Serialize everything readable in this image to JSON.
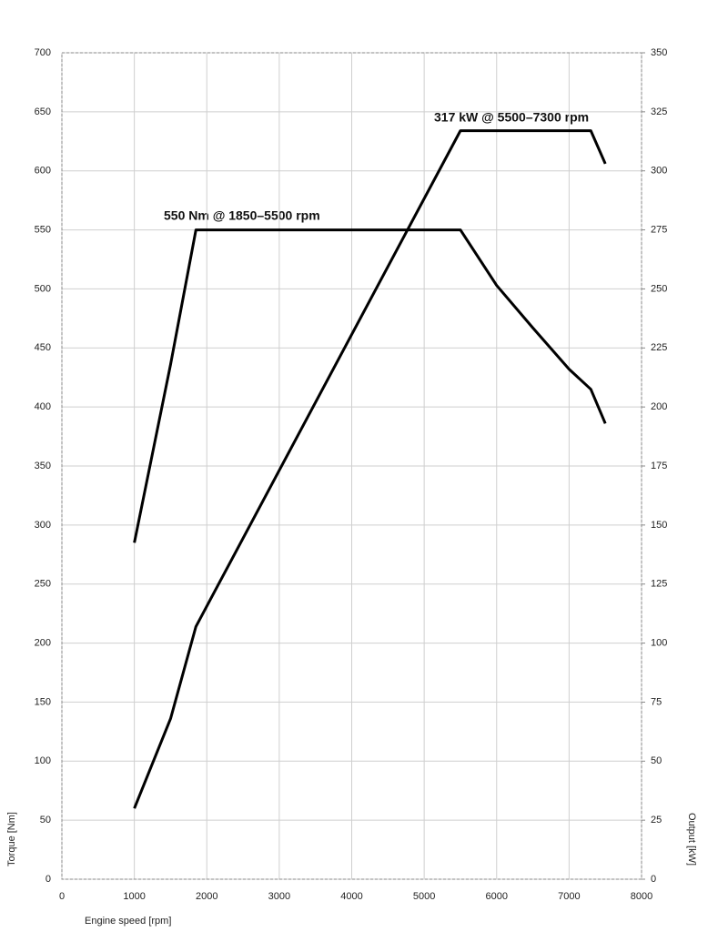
{
  "chart_data": {
    "type": "line",
    "x_label": "Engine speed [rpm]",
    "y_label": "Torque [Nm]",
    "y2_label": "Output [kW]",
    "annotations": [
      "550 Nm @ 1850–5500 rpm",
      "317 kW @ 5500–7300 rpm"
    ],
    "xlim": [
      0,
      8000
    ],
    "xticks": [
      0,
      1000,
      2000,
      3000,
      4000,
      5000,
      6000,
      7000,
      8000
    ],
    "ylim": [
      0,
      700
    ],
    "yticks": [
      0,
      50,
      100,
      150,
      200,
      250,
      300,
      350,
      400,
      450,
      500,
      550,
      600,
      650,
      700
    ],
    "y2lim": [
      0,
      350
    ],
    "y2ticks": [
      0,
      25,
      50,
      75,
      100,
      125,
      150,
      175,
      200,
      225,
      250,
      275,
      300,
      325,
      350
    ],
    "grid": true,
    "series": [
      {
        "color": "#000000",
        "axis": "y",
        "x": [
          1000,
          1500,
          1850,
          5500,
          6000,
          6500,
          7000,
          7300,
          7500
        ],
        "values": [
          285,
          436,
          550,
          550,
          503,
          467,
          432,
          415,
          386
        ]
      },
      {
        "color": "#000000",
        "axis": "y2",
        "x": [
          1000,
          1500,
          1850,
          5500,
          7300,
          7500
        ],
        "values": [
          30,
          68,
          107,
          317,
          317,
          303
        ]
      }
    ]
  }
}
